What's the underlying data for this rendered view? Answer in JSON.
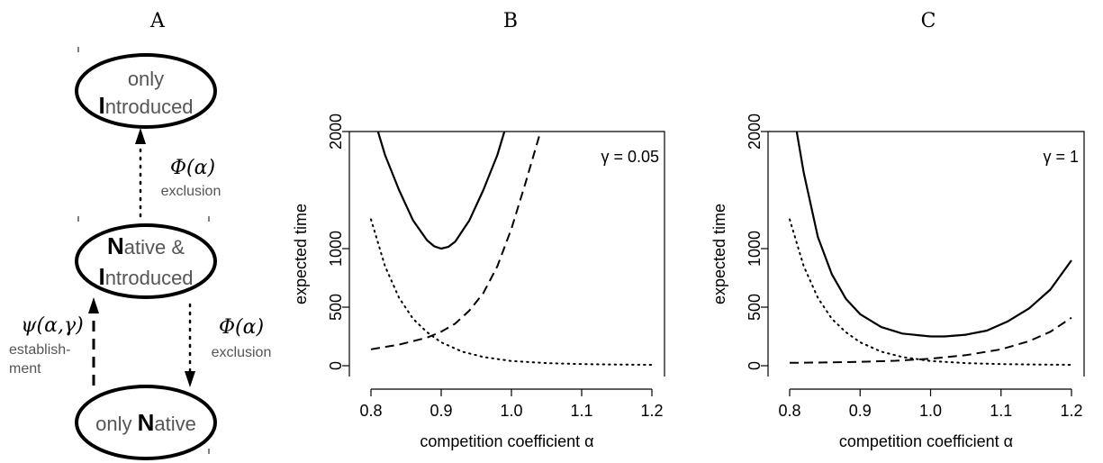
{
  "panel_labels": [
    "A",
    "B",
    "C"
  ],
  "diagram": {
    "states": {
      "top": {
        "line1": "only",
        "line2_initial": "I",
        "line2_rest": "ntroduced"
      },
      "middle": {
        "line1_initial": "N",
        "line1_rest": "ative &",
        "line2_initial": "I",
        "line2_rest": "ntroduced"
      },
      "bottom": {
        "prefix": "only ",
        "initial": "N",
        "rest": "ative"
      }
    },
    "transitions": {
      "top_exclusion": {
        "rate": "Φ(α)",
        "label": "exclusion"
      },
      "bottom_exclusion": {
        "rate": "Φ(α)",
        "label": "exclusion"
      },
      "establishment": {
        "rate": "ψ(α,γ)",
        "label_line1": "establish-",
        "label_line2": "ment"
      }
    }
  },
  "chart_data": [
    {
      "type": "line",
      "panel": "B",
      "annotation": "γ = 0.05",
      "xlabel": "competition coefficient α",
      "ylabel": "expected time",
      "xlim": [
        0.8,
        1.2
      ],
      "ylim": [
        0,
        2000
      ],
      "xticks": [
        "0.8",
        "0.9",
        "1.0",
        "1.1",
        "1.2"
      ],
      "yticks": [
        "0",
        "500",
        "1000",
        "2000"
      ],
      "series": [
        {
          "style": "solid",
          "x": [
            0.81,
            0.82,
            0.84,
            0.86,
            0.88,
            0.89,
            0.9,
            0.91,
            0.92,
            0.94,
            0.96,
            0.98,
            0.99
          ],
          "y": [
            2000,
            1800,
            1500,
            1240,
            1070,
            1020,
            1000,
            1015,
            1060,
            1240,
            1500,
            1800,
            2000
          ]
        },
        {
          "style": "dashed",
          "x": [
            0.8,
            0.84,
            0.88,
            0.9,
            0.92,
            0.94,
            0.96,
            0.98,
            1.0,
            1.02,
            1.04
          ],
          "y": [
            140,
            180,
            240,
            290,
            360,
            470,
            620,
            850,
            1170,
            1560,
            1970
          ]
        },
        {
          "style": "dotted",
          "x": [
            0.8,
            0.82,
            0.84,
            0.86,
            0.88,
            0.9,
            0.93,
            0.96,
            1.0,
            1.05,
            1.1,
            1.15,
            1.2
          ],
          "y": [
            1250,
            850,
            580,
            400,
            285,
            200,
            120,
            75,
            40,
            22,
            14,
            10,
            8
          ]
        }
      ]
    },
    {
      "type": "line",
      "panel": "C",
      "annotation": "γ = 1",
      "xlabel": "competition coefficient α",
      "ylabel": "expected time",
      "xlim": [
        0.8,
        1.2
      ],
      "ylim": [
        0,
        2000
      ],
      "xticks": [
        "0.8",
        "0.9",
        "1.0",
        "1.1",
        "1.2"
      ],
      "yticks": [
        "0",
        "500",
        "1000",
        "2000"
      ],
      "series": [
        {
          "style": "solid",
          "x": [
            0.81,
            0.82,
            0.84,
            0.86,
            0.88,
            0.9,
            0.93,
            0.96,
            1.0,
            1.02,
            1.05,
            1.08,
            1.11,
            1.14,
            1.17,
            1.2
          ],
          "y": [
            2000,
            1650,
            1100,
            780,
            570,
            440,
            330,
            275,
            250,
            250,
            265,
            300,
            380,
            490,
            650,
            900
          ]
        },
        {
          "style": "dashed",
          "x": [
            0.8,
            0.85,
            0.9,
            0.95,
            1.0,
            1.05,
            1.1,
            1.14,
            1.17,
            1.2
          ],
          "y": [
            25,
            28,
            33,
            42,
            60,
            90,
            140,
            210,
            290,
            410
          ]
        },
        {
          "style": "dotted",
          "x": [
            0.8,
            0.82,
            0.84,
            0.86,
            0.88,
            0.9,
            0.93,
            0.96,
            1.0,
            1.05,
            1.1,
            1.15,
            1.2
          ],
          "y": [
            1250,
            850,
            580,
            400,
            285,
            200,
            120,
            75,
            40,
            22,
            14,
            10,
            8
          ]
        }
      ]
    }
  ]
}
